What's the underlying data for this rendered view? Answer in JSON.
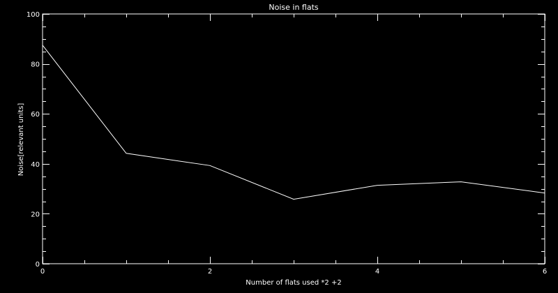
{
  "chart_data": {
    "type": "line",
    "title": "Noise in flats",
    "xlabel": "Number of flats used *2 +2",
    "ylabel": "Noise[relevant units]",
    "xlim": [
      0,
      6
    ],
    "ylim": [
      0,
      100
    ],
    "x_major_ticks": [
      0,
      2,
      4,
      6
    ],
    "x_minor_step": 0.5,
    "y_major_ticks": [
      0,
      20,
      40,
      60,
      80,
      100
    ],
    "y_minor_step": 5,
    "grid": false,
    "colors": {
      "background": "#000000",
      "foreground": "#ffffff"
    },
    "series": [
      {
        "x": [
          0,
          1,
          2,
          3,
          4,
          5,
          6
        ],
        "y": [
          87.5,
          44.2,
          39.3,
          25.8,
          31.4,
          32.8,
          28.3
        ]
      }
    ]
  }
}
